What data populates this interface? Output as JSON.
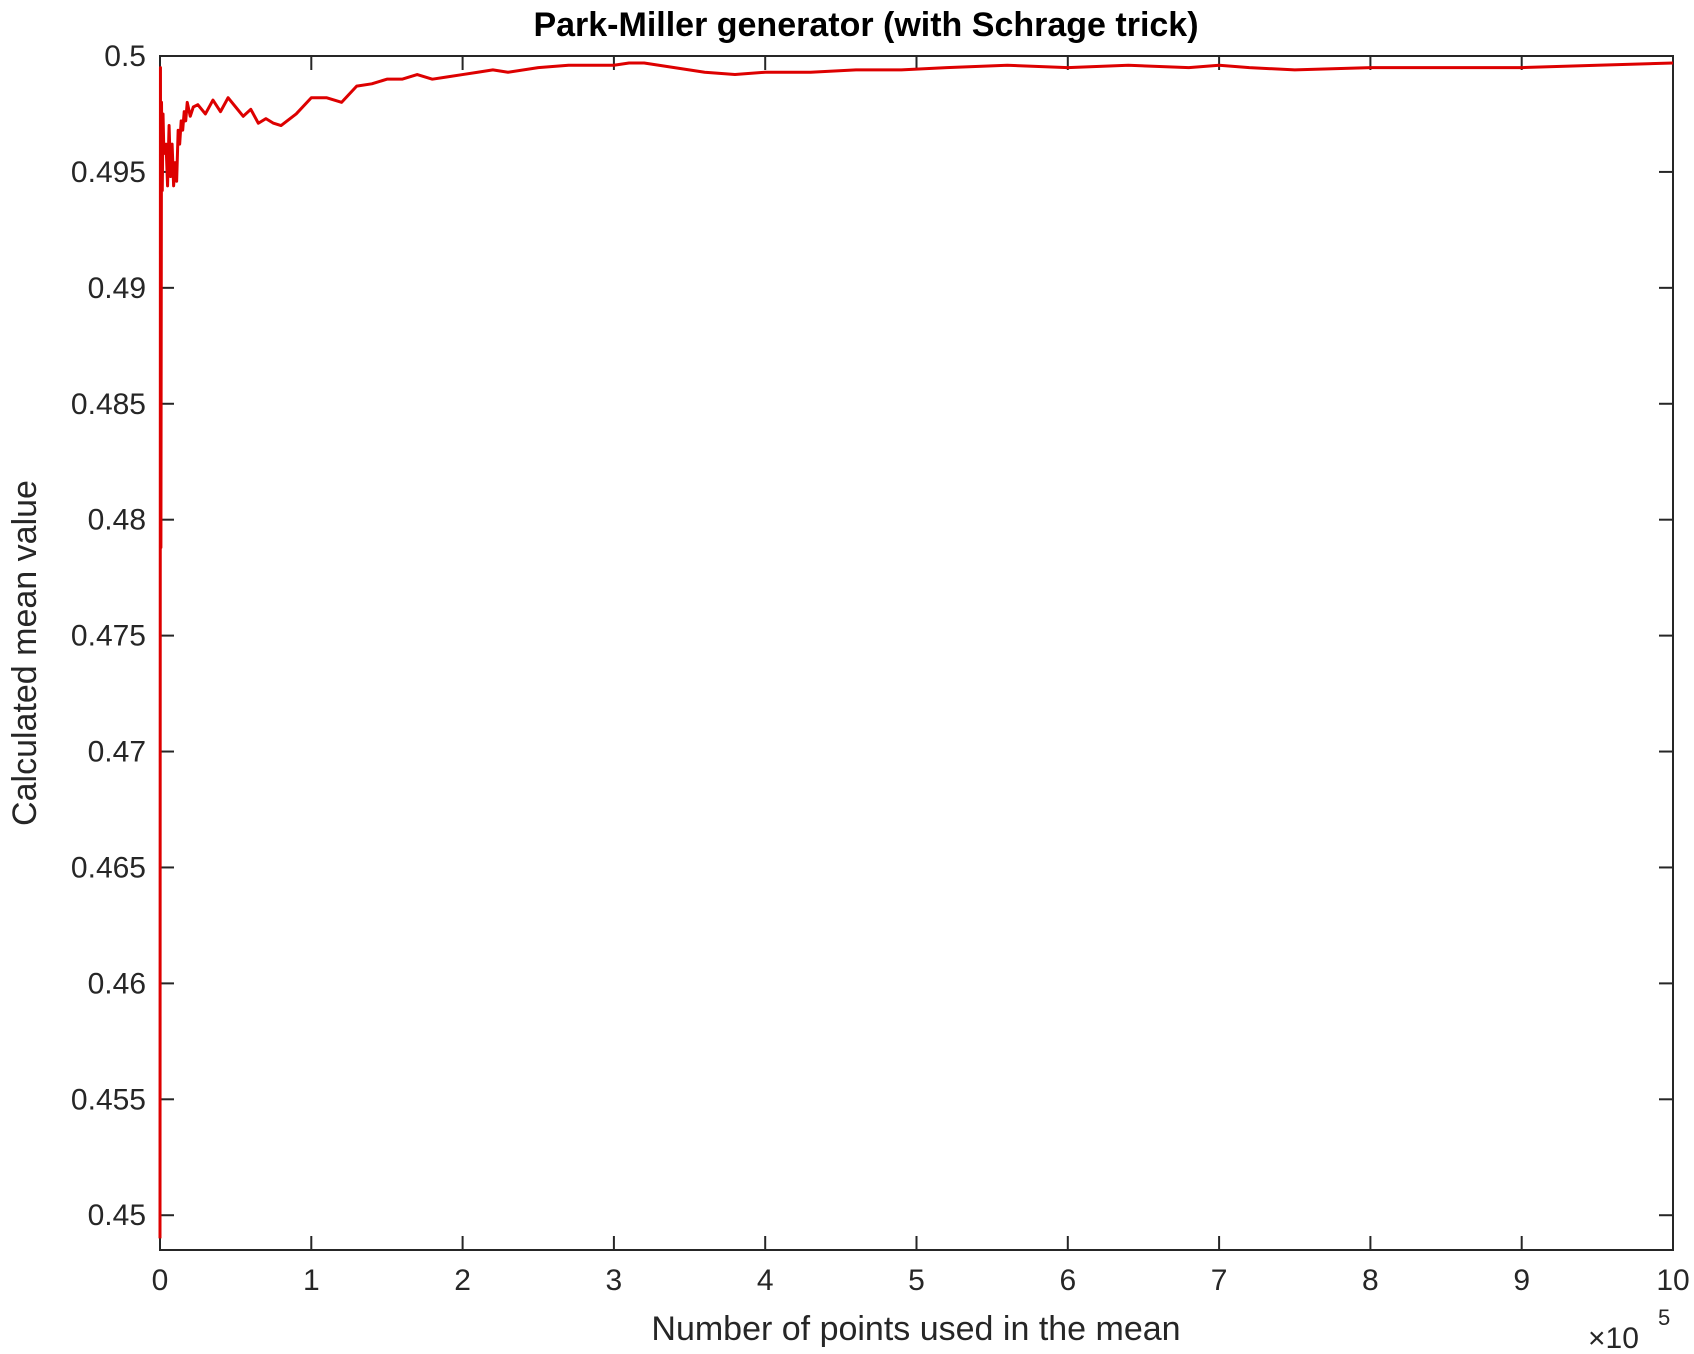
{
  "chart_data": {
    "type": "line",
    "title": "Park-Miller generator (with Schrage trick)",
    "xlabel": "Number of points used in the mean",
    "ylabel": "Calculated mean value",
    "x_multiplier": {
      "times": "×10",
      "exponent": "5"
    },
    "xlim": [
      0,
      10
    ],
    "ylim": [
      0.4485,
      0.5
    ],
    "xticks": [
      0,
      1,
      2,
      3,
      4,
      5,
      6,
      7,
      8,
      9,
      10
    ],
    "xtick_labels": [
      "0",
      "1",
      "2",
      "3",
      "4",
      "5",
      "6",
      "7",
      "8",
      "9",
      "10"
    ],
    "yticks": [
      0.45,
      0.455,
      0.46,
      0.465,
      0.47,
      0.475,
      0.48,
      0.485,
      0.49,
      0.495,
      0.5
    ],
    "ytick_labels": [
      "0.45",
      "0.455",
      "0.46",
      "0.465",
      "0.47",
      "0.475",
      "0.48",
      "0.485",
      "0.49",
      "0.495",
      "0.5"
    ],
    "grid": false,
    "series_color": "#dd0000",
    "series": [
      {
        "x": [
          0.0,
          0.003,
          0.006,
          0.01,
          0.015,
          0.02,
          0.025,
          0.03,
          0.04,
          0.05,
          0.06,
          0.07,
          0.08,
          0.09,
          0.1,
          0.11,
          0.12,
          0.13,
          0.14,
          0.15,
          0.16,
          0.17,
          0.18,
          0.2,
          0.22,
          0.25,
          0.3,
          0.35,
          0.4,
          0.45,
          0.5,
          0.55,
          0.6,
          0.65,
          0.7,
          0.75,
          0.8,
          0.9,
          1.0,
          1.1,
          1.2,
          1.3,
          1.4,
          1.5,
          1.6,
          1.7,
          1.8,
          1.9,
          2.0,
          2.1,
          2.2,
          2.3,
          2.5,
          2.7,
          2.9,
          3.0,
          3.1,
          3.2,
          3.4,
          3.6,
          3.8,
          4.0,
          4.3,
          4.6,
          4.9,
          5.2,
          5.6,
          6.0,
          6.4,
          6.8,
          7.0,
          7.2,
          7.5,
          8.0,
          8.5,
          9.0,
          9.5,
          10.0
        ],
        "y": [
          0.449,
          0.4995,
          0.4788,
          0.498,
          0.4942,
          0.4975,
          0.496,
          0.4958,
          0.4962,
          0.4944,
          0.497,
          0.4948,
          0.4962,
          0.4944,
          0.4954,
          0.4946,
          0.4968,
          0.4962,
          0.4972,
          0.4968,
          0.4976,
          0.4972,
          0.498,
          0.4974,
          0.4978,
          0.4979,
          0.4975,
          0.4981,
          0.4976,
          0.4982,
          0.4978,
          0.4974,
          0.4977,
          0.4971,
          0.4973,
          0.4971,
          0.497,
          0.4975,
          0.4982,
          0.4982,
          0.498,
          0.4987,
          0.4988,
          0.499,
          0.499,
          0.4992,
          0.499,
          0.4991,
          0.4992,
          0.4993,
          0.4994,
          0.4993,
          0.4995,
          0.4996,
          0.4996,
          0.4996,
          0.4997,
          0.4997,
          0.4995,
          0.4993,
          0.4992,
          0.4993,
          0.4993,
          0.4994,
          0.4994,
          0.4995,
          0.4996,
          0.4995,
          0.4996,
          0.4995,
          0.4996,
          0.4995,
          0.4994,
          0.4995,
          0.4995,
          0.4995,
          0.4996,
          0.4997
        ]
      }
    ]
  }
}
